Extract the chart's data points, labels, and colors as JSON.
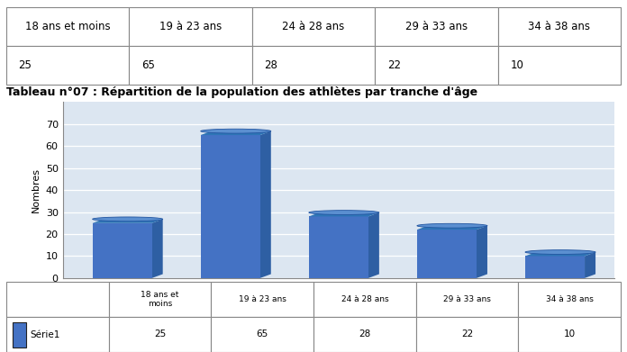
{
  "categories": [
    "18 ans et\nmoins",
    "19 à 23 ans",
    "24 à 28 ans",
    "29 à 33 a ns",
    "34 à 38 ans"
  ],
  "legend_categories": [
    "18 ans et\nmoins",
    "19 à 23 ans",
    "24 à 28 ans",
    "29 à 33 ans",
    "34 à 38 ans"
  ],
  "values": [
    25,
    65,
    28,
    22,
    10
  ],
  "bar_front_color": "#4472C4",
  "bar_side_color": "#2E5FA3",
  "bar_top_color": "#2E75B6",
  "bar_top_ellipse_color": "#5B8FD0",
  "ylabel": "Nombres",
  "ylim": [
    0,
    80
  ],
  "yticks": [
    0,
    10,
    20,
    30,
    40,
    50,
    60,
    70
  ],
  "legend_label": "Série1",
  "legend_color": "#4472C4",
  "table_headers": [
    "18 ans et moins",
    "19 à 23 ans",
    "24 à 28 ans",
    "29 à 33 ans",
    "34 à 38 ans"
  ],
  "table_values": [
    "25",
    "65",
    "28",
    "22",
    "10"
  ],
  "title": "Tableau n°07 : Répartition de la population des athlètes par tranche d'âge",
  "background_color": "#ffffff",
  "plot_bg_color": "#dce6f1",
  "grid_color": "#ffffff",
  "border_color": "#aaaaaa"
}
